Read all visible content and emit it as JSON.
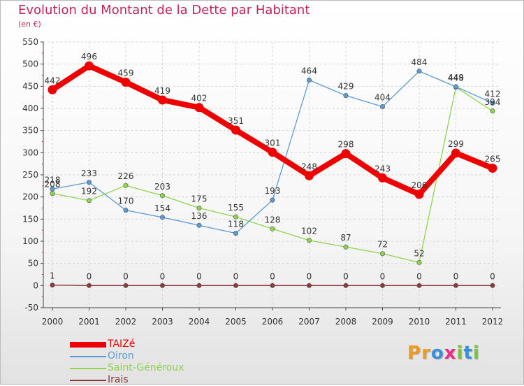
{
  "title": "Evolution du Montant de la Dette par Habitant",
  "unit": "(en €)",
  "logo": {
    "text": "Proxiti",
    "letters": [
      {
        "ch": "P",
        "color": "#f39a1e"
      },
      {
        "ch": "r",
        "color": "#f39a1e"
      },
      {
        "ch": "o",
        "color": "#3a8fd8"
      },
      {
        "ch": "x",
        "color": "#ec2b86"
      },
      {
        "ch": "i",
        "color": "#7cc242"
      },
      {
        "ch": "t",
        "color": "#3a8fd8"
      },
      {
        "ch": "i",
        "color": "#7cc242"
      }
    ]
  },
  "chart_data": {
    "type": "line",
    "title": "Evolution du Montant de la Dette par Habitant",
    "subtitle": "(en €)",
    "x": [
      "2000",
      "2001",
      "2002",
      "2003",
      "2004",
      "2005",
      "2006",
      "2007",
      "2008",
      "2009",
      "2010",
      "2011",
      "2012"
    ],
    "ylim": [
      -50,
      550
    ],
    "yticks": [
      -50,
      0,
      50,
      100,
      150,
      200,
      250,
      300,
      350,
      400,
      450,
      500,
      550
    ],
    "grid": true,
    "legend_position": "bottom-left",
    "series": [
      {
        "name": "TAIZé",
        "color": "#ee0000",
        "values": [
          442,
          496,
          459,
          419,
          402,
          351,
          301,
          248,
          298,
          243,
          206,
          299,
          265
        ]
      },
      {
        "name": "Oiron",
        "color": "#5b9bd5",
        "values": [
          218,
          233,
          170,
          154,
          136,
          118,
          193,
          464,
          429,
          404,
          484,
          449,
          412
        ]
      },
      {
        "name": "Saint-Généroux",
        "color": "#8ed44c",
        "values": [
          208,
          192,
          226,
          203,
          175,
          155,
          128,
          102,
          87,
          72,
          52,
          448,
          394
        ]
      },
      {
        "name": "Irais",
        "color": "#8b3a3a",
        "values": [
          1,
          0,
          0,
          0,
          0,
          0,
          0,
          0,
          0,
          0,
          0,
          0,
          0
        ]
      }
    ]
  }
}
